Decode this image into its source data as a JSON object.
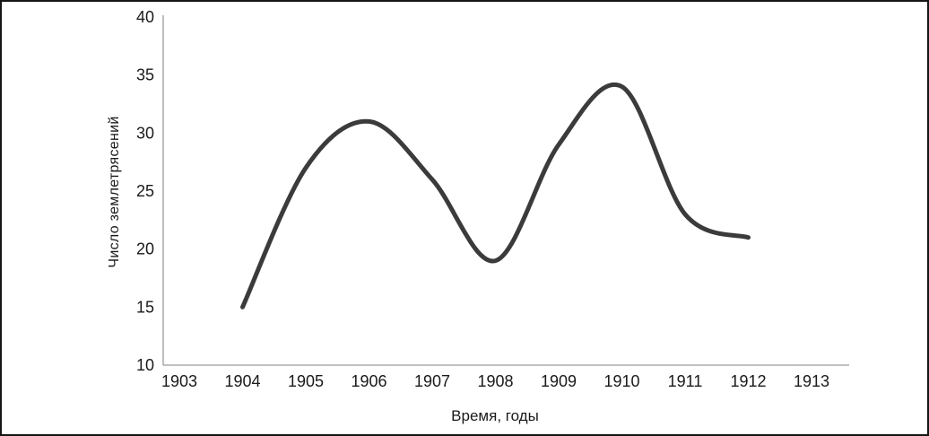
{
  "chart_data": {
    "type": "line",
    "title": "",
    "xlabel": "Время, годы",
    "ylabel": "Число землетрясений",
    "x": [
      1904,
      1905,
      1906,
      1907,
      1908,
      1909,
      1910,
      1911,
      1912
    ],
    "values": [
      15,
      27,
      31,
      26,
      19,
      29,
      34,
      23,
      21
    ],
    "series_name": "Число землетрясений",
    "xlim": [
      1903,
      1913
    ],
    "ylim": [
      10,
      40
    ],
    "x_ticks": [
      1903,
      1904,
      1905,
      1906,
      1907,
      1908,
      1909,
      1910,
      1911,
      1912,
      1913
    ],
    "y_ticks": [
      10,
      15,
      20,
      25,
      30,
      35,
      40
    ],
    "grid": false,
    "legend": "none",
    "line_color": "#3b3b3b",
    "axis_color": "#9a9a9a",
    "text_color": "#1a1a1a",
    "line_width": 5
  }
}
